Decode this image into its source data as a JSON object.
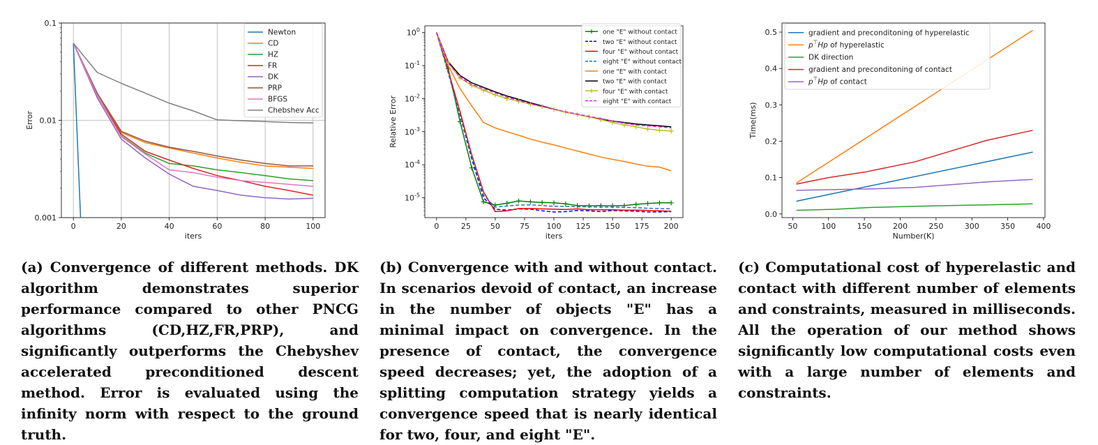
{
  "chart_data": [
    {
      "type": "line",
      "id": "a",
      "xlabel": "iters",
      "ylabel": "Error",
      "yscale": "log",
      "xlim": [
        -5,
        105
      ],
      "ylim": [
        0.001,
        0.1
      ],
      "xticks": [
        0,
        20,
        40,
        60,
        80,
        100
      ],
      "yticks": [
        0.001,
        0.01,
        0.1
      ],
      "ytick_labels": [
        "0.001",
        "0.01",
        "0.1"
      ],
      "grid": true,
      "legend_position": "top-right",
      "series": [
        {
          "name": "Newton",
          "color": "#1f77b4",
          "x": [
            0,
            3
          ],
          "y": [
            0.062,
            0.001
          ]
        },
        {
          "name": "CD",
          "color": "#ff7f0e",
          "x": [
            0,
            10,
            20,
            30,
            40,
            50,
            60,
            70,
            80,
            90,
            100
          ],
          "y": [
            0.062,
            0.018,
            0.0075,
            0.0059,
            0.0052,
            0.0046,
            0.0041,
            0.0037,
            0.0034,
            0.0033,
            0.0032
          ]
        },
        {
          "name": "HZ",
          "color": "#2ca02c",
          "x": [
            0,
            10,
            20,
            30,
            40,
            50,
            60,
            70,
            80,
            90,
            100
          ],
          "y": [
            0.062,
            0.018,
            0.0069,
            0.0046,
            0.0036,
            0.0034,
            0.0031,
            0.0029,
            0.0027,
            0.0025,
            0.0024
          ]
        },
        {
          "name": "FR",
          "color": "#d62728",
          "x": [
            0,
            10,
            20,
            30,
            40,
            50,
            60,
            70,
            80,
            90,
            100
          ],
          "y": [
            0.062,
            0.018,
            0.0072,
            0.0048,
            0.0039,
            0.0032,
            0.0027,
            0.0024,
            0.0021,
            0.0019,
            0.0017
          ]
        },
        {
          "name": "DK",
          "color": "#9467bd",
          "x": [
            0,
            10,
            20,
            30,
            40,
            50,
            60,
            70,
            80,
            90,
            100
          ],
          "y": [
            0.062,
            0.017,
            0.0064,
            0.0041,
            0.0028,
            0.0021,
            0.0019,
            0.0017,
            0.0016,
            0.00155,
            0.00158
          ]
        },
        {
          "name": "PRP",
          "color": "#8c564b",
          "x": [
            0,
            10,
            20,
            30,
            40,
            50,
            60,
            70,
            80,
            90,
            100
          ],
          "y": [
            0.062,
            0.019,
            0.0077,
            0.0061,
            0.0053,
            0.0048,
            0.0043,
            0.0039,
            0.0036,
            0.0034,
            0.0034
          ]
        },
        {
          "name": "BFGS",
          "color": "#e377c2",
          "x": [
            0,
            10,
            20,
            30,
            40,
            50,
            60,
            70,
            80,
            90,
            100
          ],
          "y": [
            0.062,
            0.018,
            0.0068,
            0.0045,
            0.0031,
            0.0029,
            0.0026,
            0.0024,
            0.0023,
            0.0022,
            0.0021
          ]
        },
        {
          "name": "Chebshev Acc",
          "color": "#7f7f7f",
          "x": [
            0,
            10,
            20,
            30,
            40,
            50,
            60,
            70,
            80,
            90,
            100
          ],
          "y": [
            0.062,
            0.031,
            0.024,
            0.019,
            0.015,
            0.0125,
            0.0101,
            0.0099,
            0.0097,
            0.0095,
            0.0094
          ]
        }
      ],
      "caption": "(a) Convergence of different methods. DK algorithm demonstrates superior performance compared to other PNCG algorithms (CD,HZ,FR,PRP), and significantly outperforms the Chebyshev accelerated preconditioned descent method. Error is evaluated using the infinity norm with respect to the ground truth."
    },
    {
      "type": "line",
      "id": "b",
      "xlabel": "iters",
      "ylabel": "Relative Error",
      "yscale": "log",
      "xlim": [
        -10,
        210
      ],
      "ylim": [
        2.5e-06,
        1.6
      ],
      "xticks": [
        0,
        25,
        50,
        75,
        100,
        125,
        150,
        175,
        200
      ],
      "yticks": [
        1e-05,
        0.0001,
        0.001,
        0.01,
        0.1,
        1
      ],
      "ytick_labels": [
        "10^-5",
        "10^-4",
        "10^-3",
        "10^-2",
        "10^-1",
        "10^0"
      ],
      "grid": false,
      "legend_position": "top-right",
      "series": [
        {
          "name": "one \"E\" without contact",
          "color": "#008000",
          "dash": "solid",
          "marker": "plus",
          "x": [
            0,
            10,
            20,
            30,
            40,
            50,
            60,
            70,
            80,
            90,
            100,
            110,
            120,
            130,
            140,
            150,
            160,
            170,
            180,
            190,
            200
          ],
          "y": [
            1,
            0.08,
            0.002,
            8e-05,
            7.5e-06,
            6e-06,
            6.8e-06,
            8e-06,
            7.5e-06,
            7.2e-06,
            7e-06,
            6.5e-06,
            5.8e-06,
            5.7e-06,
            5.8e-06,
            5.7e-06,
            5.8e-06,
            6.3e-06,
            6.7e-06,
            7e-06,
            7e-06
          ]
        },
        {
          "name": "two \"E\" without contact",
          "color": "#0000ff",
          "dash": "dashed",
          "x": [
            0,
            10,
            20,
            30,
            40,
            50,
            60,
            70,
            80,
            90,
            100,
            110,
            120,
            130,
            140,
            150,
            160,
            170,
            180,
            190,
            200
          ],
          "y": [
            1,
            0.06,
            0.003,
            0.00015,
            1e-05,
            4.5e-06,
            4.2e-06,
            4.6e-06,
            4.5e-06,
            4e-06,
            3.7e-06,
            3.8e-06,
            4.1e-06,
            4e-06,
            3.8e-06,
            4.1e-06,
            4e-06,
            3.9e-06,
            3.7e-06,
            3.7e-06,
            3.8e-06
          ]
        },
        {
          "name": "four \"E\" without contact",
          "color": "#ff0000",
          "dash": "solid",
          "x": [
            0,
            10,
            20,
            30,
            40,
            50,
            60,
            70,
            80,
            90,
            100,
            110,
            120,
            130,
            140,
            150,
            160,
            170,
            180,
            190,
            200
          ],
          "y": [
            1,
            0.07,
            0.004,
            0.0002,
            1.5e-05,
            3.8e-06,
            4e-06,
            4.7e-06,
            4.7e-06,
            4.6e-06,
            4.5e-06,
            4.4e-06,
            4.6e-06,
            4.3e-06,
            4.3e-06,
            4.3e-06,
            4.2e-06,
            4.2e-06,
            4.1e-06,
            4e-06,
            3.9e-06
          ]
        },
        {
          "name": "eight \"E\" without contact",
          "color": "#1f77b4",
          "dash": "dashed",
          "x": [
            0,
            10,
            20,
            30,
            40,
            50,
            60,
            70,
            80,
            90,
            100,
            110,
            120,
            130,
            140,
            150,
            160,
            170,
            180,
            190,
            200
          ],
          "y": [
            1,
            0.06,
            0.003,
            0.00018,
            1.2e-05,
            5.2e-06,
            5.6e-06,
            6e-06,
            6.1e-06,
            5.8e-06,
            5.5e-06,
            5.5e-06,
            5.3e-06,
            5.3e-06,
            5.2e-06,
            5.2e-06,
            5.1e-06,
            5e-06,
            4.8e-06,
            4.7e-06,
            4.6e-06
          ]
        },
        {
          "name": "one \"E\" with contact",
          "color": "#ff7f0e",
          "dash": "solid",
          "x": [
            0,
            10,
            20,
            30,
            40,
            50,
            60,
            70,
            80,
            90,
            100,
            110,
            120,
            130,
            140,
            150,
            160,
            170,
            180,
            190,
            200
          ],
          "y": [
            1,
            0.1,
            0.02,
            0.006,
            0.0019,
            0.0013,
            0.001,
            0.00078,
            0.0006,
            0.00048,
            0.0004,
            0.00032,
            0.00026,
            0.00021,
            0.00017,
            0.000145,
            0.000125,
            0.000105,
            9e-05,
            8.5e-05,
            6.5e-05
          ]
        },
        {
          "name": "two \"E\" with contact",
          "color": "#000000",
          "dash": "solid",
          "x": [
            0,
            10,
            20,
            30,
            40,
            50,
            60,
            70,
            80,
            90,
            100,
            110,
            120,
            130,
            140,
            150,
            160,
            170,
            180,
            190,
            200
          ],
          "y": [
            1,
            0.13,
            0.05,
            0.03,
            0.022,
            0.016,
            0.012,
            0.0095,
            0.0075,
            0.006,
            0.0048,
            0.0039,
            0.0033,
            0.0028,
            0.0024,
            0.0021,
            0.0019,
            0.0017,
            0.0016,
            0.0015,
            0.0014
          ]
        },
        {
          "name": "four \"E\" with contact",
          "color": "#bcbd22",
          "dash": "solid",
          "marker": "plus",
          "x": [
            0,
            10,
            20,
            30,
            40,
            50,
            60,
            70,
            80,
            90,
            100,
            110,
            120,
            130,
            140,
            150,
            160,
            170,
            180,
            190,
            200
          ],
          "y": [
            1,
            0.12,
            0.042,
            0.025,
            0.018,
            0.013,
            0.01,
            0.0083,
            0.0068,
            0.0057,
            0.0047,
            0.0039,
            0.0033,
            0.0028,
            0.0023,
            0.0019,
            0.0016,
            0.0014,
            0.0012,
            0.0011,
            0.00105
          ]
        },
        {
          "name": "eight \"E\" with contact",
          "color": "#e619e6",
          "dash": "dashed",
          "x": [
            0,
            10,
            20,
            30,
            40,
            50,
            60,
            70,
            80,
            90,
            100,
            110,
            120,
            130,
            140,
            150,
            160,
            170,
            180,
            190,
            200
          ],
          "y": [
            1,
            0.12,
            0.045,
            0.027,
            0.02,
            0.015,
            0.011,
            0.0088,
            0.007,
            0.0058,
            0.0048,
            0.004,
            0.0034,
            0.0029,
            0.0025,
            0.0021,
            0.0018,
            0.0016,
            0.0015,
            0.0014,
            0.0013
          ]
        }
      ],
      "caption": "(b) Convergence with and without contact. In scenarios devoid of contact, an increase in the number of objects \"E\" has a minimal impact on convergence. In the presence of contact, the convergence speed decreases; yet, the adoption of a splitting computation strategy yields a convergence speed that is nearly identical for two, four, and eight \"E\"."
    },
    {
      "type": "line",
      "id": "c",
      "xlabel": "Number(K)",
      "ylabel": "Time(ms)",
      "yscale": "linear",
      "xlim": [
        35,
        402
      ],
      "ylim": [
        -0.01,
        0.525
      ],
      "xticks": [
        50,
        100,
        150,
        200,
        250,
        300,
        350,
        400
      ],
      "yticks": [
        0.0,
        0.1,
        0.2,
        0.3,
        0.4,
        0.5
      ],
      "ytick_labels": [
        "0.0",
        "0.1",
        "0.2",
        "0.3",
        "0.4",
        "0.5"
      ],
      "grid": false,
      "legend_position": "top-left",
      "series": [
        {
          "name": "gradient and preconditoning of hyperelastic",
          "color": "#1f77b4",
          "x": [
            55,
            385
          ],
          "y": [
            0.035,
            0.17
          ]
        },
        {
          "name": "p^T Hp of hyperelastic",
          "color": "#ff7f0e",
          "x": [
            55,
            385
          ],
          "y": [
            0.085,
            0.505
          ]
        },
        {
          "name": "DK direction",
          "color": "#2ca02c",
          "x": [
            55,
            110,
            160,
            220,
            320,
            385
          ],
          "y": [
            0.01,
            0.013,
            0.018,
            0.021,
            0.025,
            0.028
          ]
        },
        {
          "name": "gradient and preconditoning of contact",
          "color": "#d62728",
          "x": [
            55,
            100,
            150,
            220,
            320,
            385
          ],
          "y": [
            0.082,
            0.1,
            0.115,
            0.143,
            0.202,
            0.23
          ]
        },
        {
          "name": "p^T Hp of contact",
          "color": "#9467bd",
          "x": [
            55,
            110,
            160,
            220,
            320,
            385
          ],
          "y": [
            0.065,
            0.067,
            0.069,
            0.073,
            0.088,
            0.095
          ]
        }
      ],
      "caption": "(c) Computational cost of hyperelastic and contact with different number of elements and constraints, measured in milliseconds. All the operation of our method shows significantly low computational costs even with a large number of elements and constraints."
    }
  ]
}
